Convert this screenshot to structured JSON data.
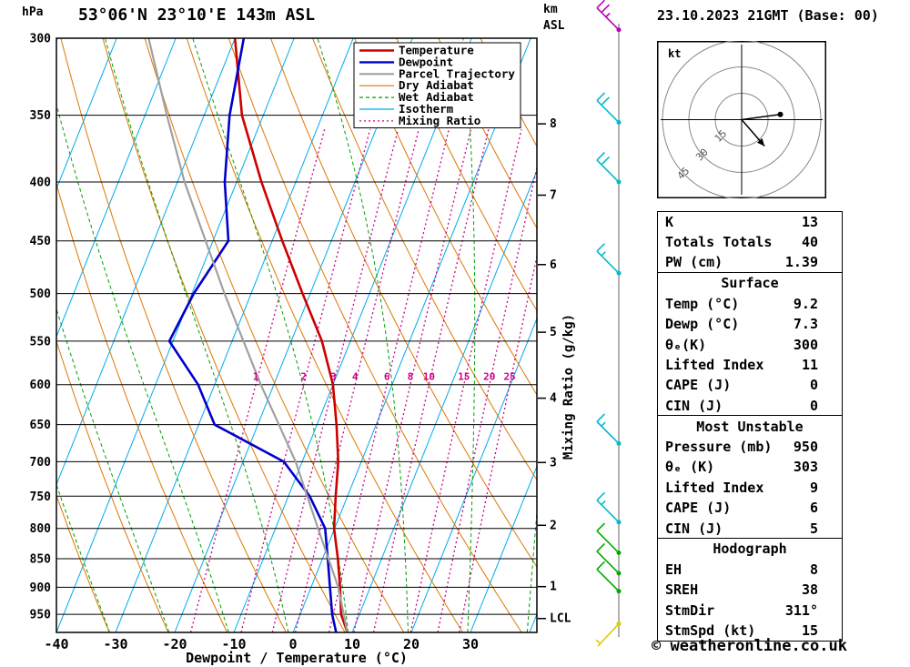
{
  "header": {
    "pressure_unit": "hPa",
    "station": "53°06'N 23°10'E 143m ASL",
    "km_label": "km",
    "asl_label": "ASL",
    "datetime": "23.10.2023 21GMT (Base: 00)"
  },
  "legend": {
    "items": [
      {
        "label": "Temperature",
        "color": "#cc0000",
        "dash": "",
        "width": 2.4
      },
      {
        "label": "Dewpoint",
        "color": "#0000cc",
        "dash": "",
        "width": 2.4
      },
      {
        "label": "Parcel Trajectory",
        "color": "#a0a0a0",
        "dash": "",
        "width": 2.2
      },
      {
        "label": "Dry Adiabat",
        "color": "#dd7700",
        "dash": "",
        "width": 1.2
      },
      {
        "label": "Wet Adiabat",
        "color": "#00a000",
        "dash": "4,3",
        "width": 1.2
      },
      {
        "label": "Isotherm",
        "color": "#00aaee",
        "dash": "",
        "width": 1.2
      },
      {
        "label": "Mixing Ratio",
        "color": "#cc0088",
        "dash": "2,3",
        "width": 1.3
      }
    ]
  },
  "axes": {
    "pressure_ticks": [
      300,
      350,
      400,
      450,
      500,
      550,
      600,
      650,
      700,
      750,
      800,
      850,
      900,
      950
    ],
    "temp_ticks": [
      -40,
      -30,
      -20,
      -10,
      0,
      10,
      20,
      30
    ],
    "km_ticks": [
      8,
      7,
      6,
      5,
      4,
      3,
      2,
      1
    ],
    "lcl_label": "LCL",
    "xlabel": "Dewpoint / Temperature (°C)",
    "y2label": "Mixing Ratio (g/kg)"
  },
  "chart_data": {
    "type": "line",
    "title": "Skew-T log-P sounding",
    "x_axis": {
      "label": "Dewpoint / Temperature (°C)",
      "range": [
        -40,
        41
      ],
      "unit": "°C"
    },
    "y_axis": {
      "label": "hPa",
      "range": [
        300,
        985
      ],
      "scale": "log"
    },
    "isotherm_step": 10,
    "dry_adiabat_step": 10,
    "wet_adiabat_step": 10,
    "mixing_ratio_lines": [
      1,
      2,
      3,
      4,
      6,
      8,
      10,
      15,
      20,
      25
    ],
    "series": [
      {
        "name": "Temperature",
        "color": "#cc0000",
        "points": [
          [
            985,
            9.2
          ],
          [
            950,
            6.9
          ],
          [
            900,
            4.9
          ],
          [
            850,
            2.6
          ],
          [
            800,
            -0.1
          ],
          [
            750,
            -2.0
          ],
          [
            700,
            -3.9
          ],
          [
            650,
            -6.7
          ],
          [
            600,
            -10.0
          ],
          [
            550,
            -14.8
          ],
          [
            500,
            -21.3
          ],
          [
            450,
            -28.3
          ],
          [
            400,
            -35.8
          ],
          [
            350,
            -43.6
          ],
          [
            300,
            -50.0
          ]
        ]
      },
      {
        "name": "Dewpoint",
        "color": "#0000cc",
        "points": [
          [
            985,
            7.3
          ],
          [
            950,
            5.4
          ],
          [
            900,
            3.2
          ],
          [
            850,
            0.9
          ],
          [
            800,
            -1.6
          ],
          [
            750,
            -6.4
          ],
          [
            700,
            -13.1
          ],
          [
            650,
            -27.3
          ],
          [
            600,
            -32.8
          ],
          [
            550,
            -40.6
          ],
          [
            500,
            -39.7
          ],
          [
            450,
            -37.4
          ],
          [
            400,
            -42.0
          ],
          [
            350,
            -45.7
          ],
          [
            300,
            -48.5
          ]
        ]
      },
      {
        "name": "Parcel Trajectory",
        "color": "#a0a0a0",
        "points": [
          [
            985,
            9.2
          ],
          [
            900,
            4.6
          ],
          [
            800,
            -2.8
          ],
          [
            700,
            -11.1
          ],
          [
            600,
            -22.2
          ],
          [
            500,
            -34.5
          ],
          [
            400,
            -48.8
          ],
          [
            350,
            -56.3
          ],
          [
            300,
            -64.6
          ]
        ]
      }
    ]
  },
  "wind_barbs": [
    {
      "p": 295,
      "color": "#bb00bb",
      "speed": 25,
      "dir": "NW"
    },
    {
      "p": 355,
      "color": "#00bbcc",
      "speed": 20,
      "dir": "NW"
    },
    {
      "p": 400,
      "color": "#00bbcc",
      "speed": 20,
      "dir": "NW"
    },
    {
      "p": 480,
      "color": "#00bbcc",
      "speed": 15,
      "dir": "NW"
    },
    {
      "p": 675,
      "color": "#00bbcc",
      "speed": 15,
      "dir": "NW"
    },
    {
      "p": 790,
      "color": "#00bbcc",
      "speed": 15,
      "dir": "NW"
    },
    {
      "p": 840,
      "color": "#00aa00",
      "speed": 10,
      "dir": "NW"
    },
    {
      "p": 875,
      "color": "#00aa00",
      "speed": 10,
      "dir": "NW"
    },
    {
      "p": 907,
      "color": "#00aa00",
      "speed": 10,
      "dir": "NW"
    },
    {
      "p": 968,
      "color": "#ddcc00",
      "speed": 5,
      "dir": "SW"
    }
  ],
  "hodograph": {
    "unit_label": "kt",
    "rings_kt": [
      15,
      30,
      45
    ],
    "trace_kt": [
      [
        0,
        0
      ],
      [
        22,
        3
      ]
    ],
    "arrow_to_kt": [
      13,
      -15
    ],
    "dot_kt": [
      22,
      3
    ]
  },
  "panels": [
    {
      "title": null,
      "rows": [
        [
          "K",
          "13"
        ],
        [
          "Totals Totals",
          "40"
        ],
        [
          "PW (cm)",
          "1.39"
        ]
      ]
    },
    {
      "title": "Surface",
      "rows": [
        [
          "Temp (°C)",
          "9.2"
        ],
        [
          "Dewp (°C)",
          "7.3"
        ],
        [
          "θₑ(K)",
          "300"
        ],
        [
          "Lifted Index",
          "11"
        ],
        [
          "CAPE (J)",
          "0"
        ],
        [
          "CIN (J)",
          "0"
        ]
      ]
    },
    {
      "title": "Most Unstable",
      "rows": [
        [
          "Pressure (mb)",
          "950"
        ],
        [
          "θₑ (K)",
          "303"
        ],
        [
          "Lifted Index",
          "9"
        ],
        [
          "CAPE (J)",
          "6"
        ],
        [
          "CIN (J)",
          "5"
        ]
      ]
    },
    {
      "title": "Hodograph",
      "rows": [
        [
          "EH",
          "8"
        ],
        [
          "SREH",
          "38"
        ],
        [
          "StmDir",
          "311°"
        ],
        [
          "StmSpd (kt)",
          "15"
        ]
      ]
    }
  ],
  "footer": {
    "copyright": "© weatheronline.co.uk"
  }
}
